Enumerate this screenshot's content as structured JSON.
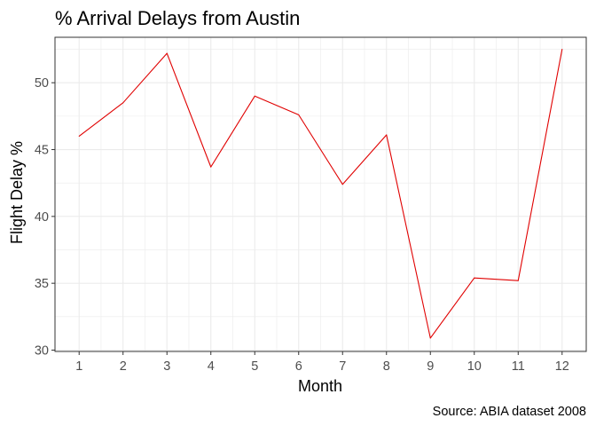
{
  "chart_data": {
    "type": "line",
    "title": "% Arrival Delays from Austin",
    "xlabel": "Month",
    "ylabel": "Flight Delay %",
    "caption": "Source: ABIA dataset 2008",
    "x": [
      1,
      2,
      3,
      4,
      5,
      6,
      7,
      8,
      9,
      10,
      11,
      12
    ],
    "series": [
      {
        "values": [
          46.0,
          48.5,
          52.2,
          43.7,
          49.0,
          47.6,
          42.4,
          46.1,
          30.9,
          35.4,
          35.2,
          52.5
        ]
      }
    ],
    "xlim": [
      0.45,
      12.55
    ],
    "ylim": [
      29.9,
      53.4
    ],
    "xticks": [
      1,
      2,
      3,
      4,
      5,
      6,
      7,
      8,
      9,
      10,
      11,
      12
    ],
    "yticks": [
      30,
      35,
      40,
      45,
      50
    ],
    "grid": true,
    "colors": {
      "line": "#e00000",
      "grid": "#ebebeb",
      "panel_border": "#333333"
    }
  }
}
